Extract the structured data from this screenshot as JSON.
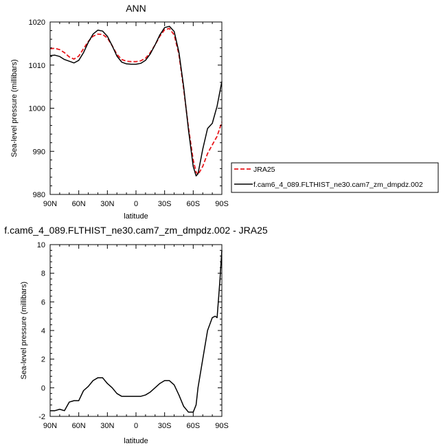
{
  "chart_data": [
    {
      "type": "line",
      "title": "ANN",
      "xlabel": "latitude",
      "ylabel": "Sea-level pressure (millibars)",
      "xlim": [
        90,
        -90
      ],
      "ylim": [
        980,
        1020
      ],
      "x_ticks": [
        90,
        60,
        30,
        0,
        -30,
        -60,
        -90
      ],
      "x_tick_labels": [
        "90N",
        "60N",
        "30N",
        "0",
        "30S",
        "60S",
        "90S"
      ],
      "y_ticks": [
        980,
        990,
        1000,
        1010,
        1020
      ],
      "y_tick_labels": [
        "980",
        "990",
        "1000",
        "1010",
        "1020"
      ],
      "legend_position": "right",
      "series": [
        {
          "name": "JRA25",
          "color": "#e8161b",
          "style": "dashed",
          "x": [
            90,
            85,
            80,
            75,
            70,
            65,
            60,
            55,
            50,
            45,
            40,
            35,
            30,
            25,
            20,
            15,
            10,
            5,
            0,
            -5,
            -10,
            -15,
            -20,
            -25,
            -30,
            -35,
            -40,
            -45,
            -50,
            -55,
            -60,
            -63,
            -65,
            -70,
            -75,
            -80,
            -85,
            -90
          ],
          "values": [
            1013.8,
            1013.9,
            1013.6,
            1012.9,
            1011.9,
            1011.4,
            1012.1,
            1013.8,
            1015.5,
            1016.7,
            1017.2,
            1017.1,
            1016.3,
            1014.5,
            1012.5,
            1011.3,
            1010.9,
            1010.8,
            1010.8,
            1011.0,
            1011.6,
            1012.9,
            1014.7,
            1016.7,
            1018.2,
            1018.5,
            1017.0,
            1012.5,
            1004.5,
            995.5,
            988.0,
            985.2,
            984.6,
            986.5,
            989.5,
            991.5,
            993.5,
            996.8
          ]
        },
        {
          "name": "f.cam6_4_089.FLTHIST_ne30.cam7_zm_dmpdz.002",
          "color": "#000000",
          "style": "solid",
          "x": [
            90,
            85,
            80,
            75,
            70,
            65,
            60,
            55,
            50,
            45,
            40,
            35,
            30,
            25,
            20,
            15,
            10,
            5,
            0,
            -5,
            -10,
            -15,
            -20,
            -25,
            -30,
            -35,
            -40,
            -45,
            -50,
            -55,
            -60,
            -63,
            -65,
            -70,
            -75,
            -80,
            -85,
            -90
          ],
          "values": [
            1012.2,
            1012.3,
            1012.0,
            1011.3,
            1010.9,
            1010.5,
            1011.1,
            1012.9,
            1015.3,
            1017.2,
            1018.1,
            1017.9,
            1016.7,
            1014.5,
            1012.1,
            1010.7,
            1010.3,
            1010.2,
            1010.2,
            1010.4,
            1011.1,
            1012.6,
            1014.7,
            1017.0,
            1018.7,
            1019.0,
            1017.8,
            1013.0,
            1005.0,
            995.0,
            986.5,
            984.3,
            984.8,
            990.5,
            995.3,
            996.5,
            1000.5,
            1006.2
          ]
        }
      ]
    },
    {
      "type": "line",
      "title": "f.cam6_4_089.FLTHIST_ne30.cam7_zm_dmpdz.002 - JRA25",
      "xlabel": "latitude",
      "ylabel": "Sea-level pressure (millibars)",
      "xlim": [
        90,
        -90
      ],
      "ylim": [
        -2,
        10
      ],
      "x_ticks": [
        90,
        60,
        30,
        0,
        -30,
        -60,
        -90
      ],
      "x_tick_labels": [
        "90N",
        "60N",
        "30N",
        "0",
        "30S",
        "60S",
        "90S"
      ],
      "y_ticks": [
        -2,
        0,
        2,
        4,
        6,
        8,
        10
      ],
      "y_tick_labels": [
        "-2",
        "0",
        "2",
        "4",
        "6",
        "8",
        "10"
      ],
      "series": [
        {
          "color": "#000000",
          "style": "solid",
          "x": [
            90,
            85,
            80,
            75,
            70,
            65,
            60,
            55,
            50,
            45,
            40,
            35,
            30,
            25,
            20,
            15,
            10,
            5,
            0,
            -5,
            -10,
            -15,
            -20,
            -25,
            -30,
            -35,
            -40,
            -45,
            -50,
            -55,
            -60,
            -63,
            -65,
            -70,
            -75,
            -80,
            -83,
            -85,
            -88,
            -90
          ],
          "values": [
            -1.6,
            -1.6,
            -1.5,
            -1.6,
            -1.0,
            -0.9,
            -0.9,
            -0.2,
            0.1,
            0.5,
            0.7,
            0.7,
            0.3,
            0.0,
            -0.4,
            -0.6,
            -0.6,
            -0.6,
            -0.6,
            -0.6,
            -0.5,
            -0.3,
            0.0,
            0.3,
            0.5,
            0.5,
            0.2,
            -0.5,
            -1.3,
            -1.7,
            -1.7,
            -1.2,
            0.0,
            2.0,
            4.0,
            4.9,
            5.0,
            4.9,
            7.5,
            9.6
          ]
        }
      ]
    }
  ]
}
